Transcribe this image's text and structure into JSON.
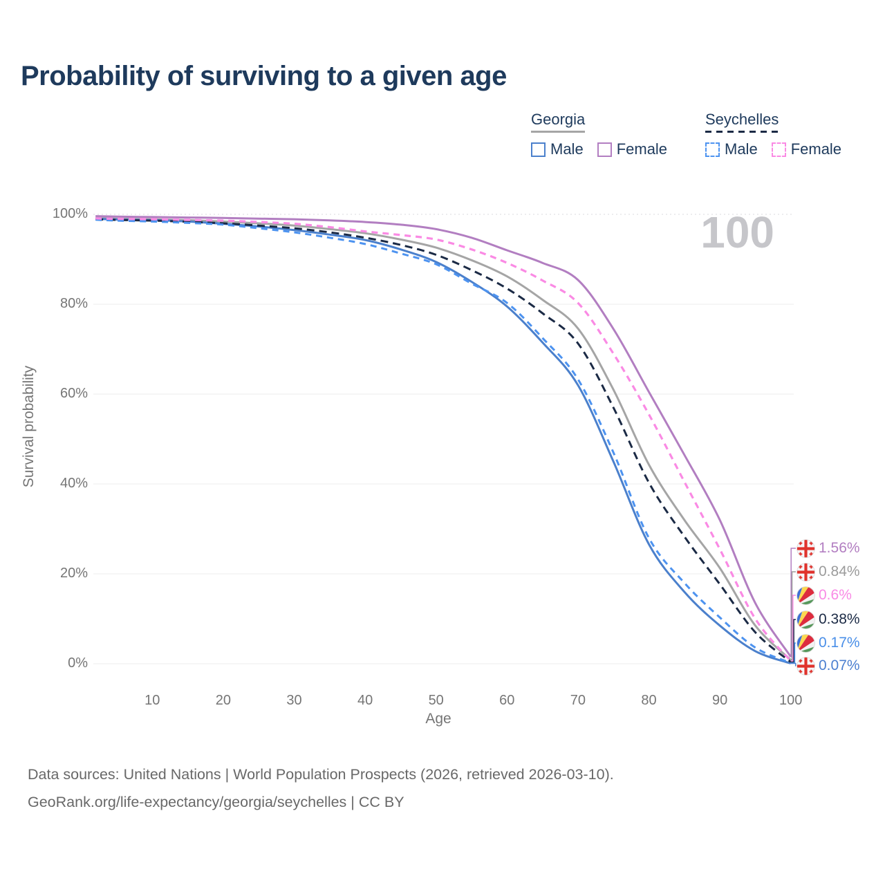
{
  "title": "Probability of surviving to a given age",
  "watermark": "100",
  "legend": {
    "groups": [
      {
        "id": "georgia",
        "label": "Georgia",
        "underline_color": "#a5a5a5",
        "underline_style": "solid",
        "items": [
          {
            "label": "Male",
            "color": "#4b80cc",
            "style": "solid"
          },
          {
            "label": "Female",
            "color": "#b27ec1",
            "style": "solid"
          }
        ]
      },
      {
        "id": "seychelles",
        "label": "Seychelles",
        "underline_color": "#1b2a45",
        "underline_style": "dashed",
        "items": [
          {
            "label": "Male",
            "color": "#4d93f0",
            "style": "dashed"
          },
          {
            "label": "Female",
            "color": "#fa8ae4",
            "style": "dashed"
          }
        ]
      }
    ]
  },
  "y_axis": {
    "title": "Survival probability",
    "tick_labels": [
      "100%",
      "80%",
      "60%",
      "40%",
      "20%",
      "0%"
    ],
    "tick_values": [
      100,
      80,
      60,
      40,
      20,
      0
    ]
  },
  "x_axis": {
    "title": "Age",
    "tick_labels": [
      "10",
      "20",
      "30",
      "40",
      "50",
      "60",
      "70",
      "80",
      "90",
      "100"
    ],
    "tick_values": [
      10,
      20,
      30,
      40,
      50,
      60,
      70,
      80,
      90,
      100
    ]
  },
  "end_labels": [
    {
      "series": "Georgia Female",
      "flag": "georgia",
      "value": "1.56%",
      "color": "#b27ec1"
    },
    {
      "series": "Georgia Both sexes",
      "flag": "georgia",
      "value": "0.84%",
      "color": "#9b9b9b"
    },
    {
      "series": "Seychelles Female",
      "flag": "seychelles",
      "value": "0.6%",
      "color": "#f98ae5"
    },
    {
      "series": "Seychelles Both sexes",
      "flag": "seychelles",
      "value": "0.38%",
      "color": "#1b2a45"
    },
    {
      "series": "Seychelles Male",
      "flag": "seychelles",
      "value": "0.17%",
      "color": "#4a8fe8"
    },
    {
      "series": "Georgia Male",
      "flag": "georgia",
      "value": "0.07%",
      "color": "#4b7fd0"
    }
  ],
  "footer": {
    "line1": "Data sources: United Nations | World Population Prospects (2026, retrieved 2026-03-10).",
    "line2": "GeoRank.org/life-expectancy/georgia/seychelles | CC BY"
  },
  "chart_data": {
    "type": "line",
    "title": "Probability of surviving to a given age",
    "xlabel": "Age",
    "ylabel": "Survival probability",
    "xlim": [
      0,
      100
    ],
    "ylim": [
      0,
      100
    ],
    "y_unit": "percent",
    "grid": "horizontal",
    "legend_position": "top-right",
    "x_ages": [
      0,
      5,
      10,
      15,
      20,
      25,
      30,
      35,
      40,
      45,
      50,
      55,
      60,
      65,
      70,
      75,
      80,
      85,
      90,
      95,
      100
    ],
    "series": [
      {
        "name": "Georgia Both sexes",
        "country": "Georgia",
        "sex": "Both",
        "color": "#a5a5a5",
        "dash": null,
        "width": 3,
        "values": [
          99.2,
          99.05,
          98.9,
          98.7,
          98.4,
          98.0,
          97.5,
          96.7,
          95.8,
          94.4,
          92.6,
          89.8,
          86.2,
          81.0,
          74.6,
          61.0,
          44.3,
          32.0,
          21.3,
          8.5,
          0.84
        ]
      },
      {
        "name": "Georgia Male",
        "country": "Georgia",
        "sex": "Male",
        "color": "#4b80cc",
        "dash": null,
        "width": 3,
        "values": [
          99.0,
          98.85,
          98.7,
          98.4,
          97.9,
          97.3,
          96.5,
          95.5,
          94.3,
          92.2,
          89.4,
          85.0,
          79.5,
          71.5,
          62.0,
          45.0,
          26.6,
          16.0,
          8.5,
          2.8,
          0.07
        ]
      },
      {
        "name": "Georgia Female",
        "country": "Georgia",
        "sex": "Female",
        "color": "#b27ec1",
        "dash": null,
        "width": 3,
        "values": [
          99.6,
          99.5,
          99.4,
          99.3,
          99.2,
          99.05,
          98.9,
          98.65,
          98.3,
          97.7,
          96.7,
          94.8,
          92.0,
          89.2,
          85.4,
          74.5,
          60.5,
          46.5,
          32.0,
          13.5,
          1.56
        ]
      },
      {
        "name": "Seychelles Both sexes",
        "country": "Seychelles",
        "sex": "Both",
        "color": "#1b2a45",
        "dash": "11 7",
        "width": 3,
        "values": [
          98.9,
          98.75,
          98.6,
          98.35,
          98.0,
          97.5,
          96.9,
          96.0,
          94.8,
          93.2,
          91.0,
          87.6,
          83.5,
          78.0,
          71.3,
          57.0,
          40.3,
          28.3,
          17.7,
          7.0,
          0.38
        ]
      },
      {
        "name": "Seychelles Male",
        "country": "Seychelles",
        "sex": "Male",
        "color": "#4d93f0",
        "dash": "9 7",
        "width": 3,
        "values": [
          98.8,
          98.6,
          98.4,
          98.1,
          97.7,
          96.9,
          96.0,
          94.8,
          93.4,
          91.3,
          88.9,
          84.6,
          80.3,
          72.5,
          63.3,
          47.0,
          28.0,
          18.0,
          10.3,
          3.6,
          0.17
        ]
      },
      {
        "name": "Seychelles Female",
        "country": "Seychelles",
        "sex": "Female",
        "color": "#fa8ae4",
        "dash": "9 7",
        "width": 3.2,
        "values": [
          99.1,
          99.0,
          98.9,
          98.75,
          98.6,
          98.3,
          97.9,
          97.15,
          96.2,
          95.4,
          94.4,
          92.2,
          89.2,
          85.3,
          80.3,
          69.0,
          55.5,
          40.5,
          25.5,
          10.0,
          0.6
        ]
      }
    ],
    "end_values_percent": {
      "Georgia Female": 1.56,
      "Georgia Both sexes": 0.84,
      "Seychelles Female": 0.6,
      "Seychelles Both sexes": 0.38,
      "Seychelles Male": 0.17,
      "Georgia Male": 0.07
    }
  }
}
